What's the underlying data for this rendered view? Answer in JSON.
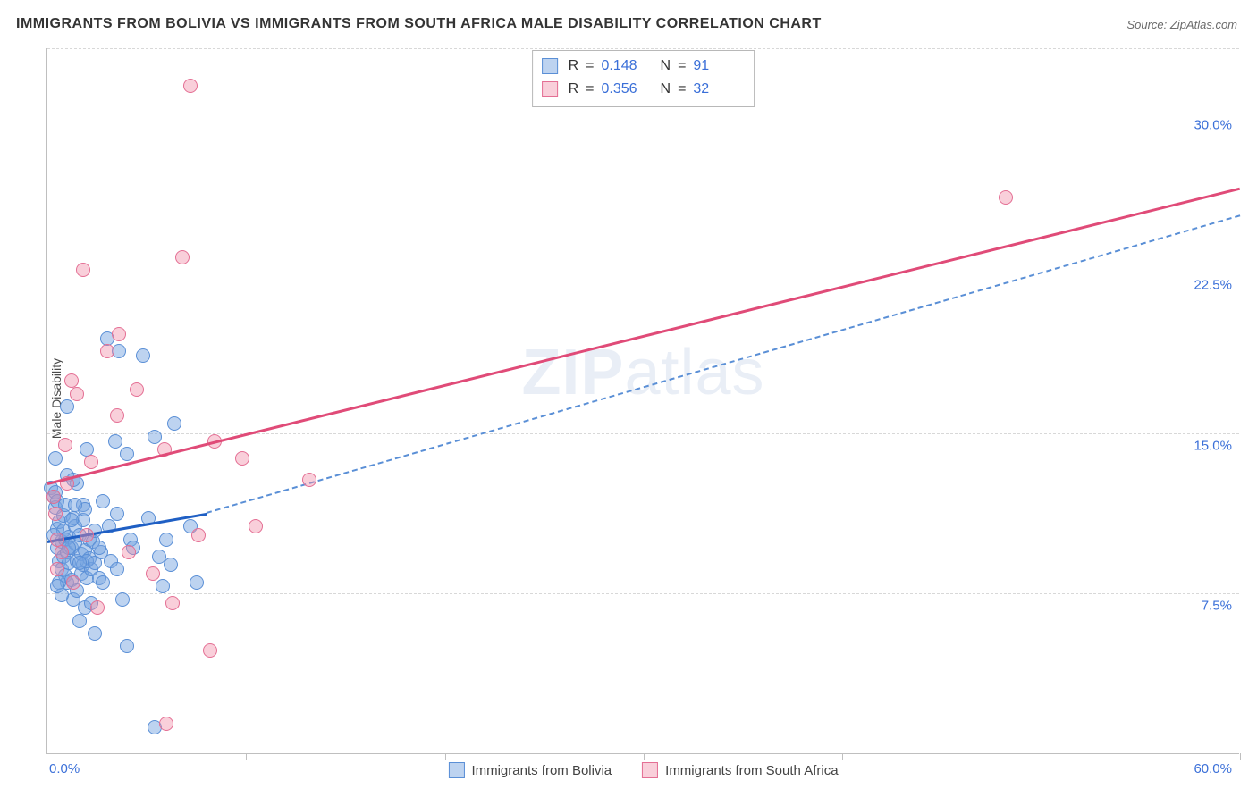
{
  "title": "IMMIGRANTS FROM BOLIVIA VS IMMIGRANTS FROM SOUTH AFRICA MALE DISABILITY CORRELATION CHART",
  "source": "Source: ZipAtlas.com",
  "ylabel": "Male Disability",
  "watermark_bold": "ZIP",
  "watermark_rest": "atlas",
  "chart": {
    "type": "scatter",
    "xlim": [
      0,
      60
    ],
    "ylim": [
      0,
      33
    ],
    "ytick_values": [
      7.5,
      15.0,
      22.5,
      30.0
    ],
    "ytick_labels": [
      "7.5%",
      "15.0%",
      "22.5%",
      "30.0%"
    ],
    "xtick_positions": [
      0,
      10,
      20,
      30,
      40,
      50,
      60
    ],
    "xaxis_label_left": "0.0%",
    "xaxis_label_right": "60.0%",
    "background_color": "#ffffff",
    "grid_color": "#d8d8d8",
    "point_radius": 8,
    "series": [
      {
        "name": "Immigrants from Bolivia",
        "fill": "rgba(118,164,224,0.48)",
        "stroke": "#5a8fd6",
        "line_color": "#1f5fc4",
        "line_dash_color": "#5a8fd6",
        "R": "0.148",
        "N": "91",
        "regression": {
          "x1": 0,
          "y1": 10.0,
          "x2_solid": 8,
          "y2_solid": 11.3,
          "x2": 60,
          "y2": 25.2
        },
        "points": [
          [
            0.2,
            12.4
          ],
          [
            0.3,
            12.0
          ],
          [
            0.4,
            11.5
          ],
          [
            0.4,
            12.2
          ],
          [
            0.5,
            11.8
          ],
          [
            0.5,
            10.5
          ],
          [
            0.5,
            9.6
          ],
          [
            0.6,
            10.8
          ],
          [
            0.6,
            9.0
          ],
          [
            0.7,
            8.6
          ],
          [
            0.7,
            9.9
          ],
          [
            0.8,
            9.2
          ],
          [
            0.8,
            10.4
          ],
          [
            0.8,
            11.1
          ],
          [
            0.9,
            8.3
          ],
          [
            0.9,
            10.0
          ],
          [
            1.0,
            16.2
          ],
          [
            1.0,
            9.4
          ],
          [
            1.0,
            8.0
          ],
          [
            1.1,
            10.1
          ],
          [
            1.1,
            8.9
          ],
          [
            1.2,
            9.6
          ],
          [
            1.2,
            8.1
          ],
          [
            1.3,
            11.0
          ],
          [
            1.3,
            7.2
          ],
          [
            1.4,
            9.8
          ],
          [
            1.4,
            10.6
          ],
          [
            1.5,
            9.0
          ],
          [
            1.5,
            12.6
          ],
          [
            1.5,
            7.6
          ],
          [
            1.6,
            6.2
          ],
          [
            1.6,
            10.2
          ],
          [
            1.7,
            8.4
          ],
          [
            1.7,
            9.3
          ],
          [
            1.8,
            11.6
          ],
          [
            1.8,
            8.8
          ],
          [
            1.9,
            6.8
          ],
          [
            1.9,
            9.5
          ],
          [
            2.0,
            14.2
          ],
          [
            2.0,
            8.2
          ],
          [
            2.1,
            10.0
          ],
          [
            2.1,
            9.1
          ],
          [
            2.2,
            7.0
          ],
          [
            2.2,
            8.6
          ],
          [
            2.3,
            9.9
          ],
          [
            2.4,
            5.6
          ],
          [
            2.4,
            10.4
          ],
          [
            2.6,
            8.2
          ],
          [
            2.7,
            9.4
          ],
          [
            2.8,
            11.8
          ],
          [
            2.8,
            8.0
          ],
          [
            3.0,
            19.4
          ],
          [
            3.1,
            10.6
          ],
          [
            3.2,
            9.0
          ],
          [
            3.4,
            14.6
          ],
          [
            3.5,
            8.6
          ],
          [
            3.5,
            11.2
          ],
          [
            3.6,
            18.8
          ],
          [
            3.8,
            7.2
          ],
          [
            4.0,
            14.0
          ],
          [
            4.0,
            5.0
          ],
          [
            4.2,
            10.0
          ],
          [
            4.3,
            9.6
          ],
          [
            4.8,
            18.6
          ],
          [
            5.1,
            11.0
          ],
          [
            5.4,
            14.8
          ],
          [
            5.4,
            1.2
          ],
          [
            5.6,
            9.2
          ],
          [
            5.8,
            7.8
          ],
          [
            6.0,
            10.0
          ],
          [
            6.2,
            8.8
          ],
          [
            6.4,
            15.4
          ],
          [
            7.2,
            10.6
          ],
          [
            7.5,
            8.0
          ],
          [
            1.0,
            13.0
          ],
          [
            0.4,
            13.8
          ],
          [
            1.3,
            12.8
          ],
          [
            0.7,
            7.4
          ],
          [
            1.8,
            10.9
          ],
          [
            2.0,
            9.0
          ],
          [
            2.4,
            8.9
          ],
          [
            2.6,
            9.6
          ],
          [
            1.9,
            11.4
          ],
          [
            1.2,
            10.9
          ],
          [
            0.9,
            11.6
          ],
          [
            1.4,
            11.6
          ],
          [
            1.6,
            8.9
          ],
          [
            1.1,
            9.6
          ],
          [
            0.6,
            8.0
          ],
          [
            0.5,
            7.8
          ],
          [
            0.3,
            10.2
          ]
        ]
      },
      {
        "name": "Immigrants from South Africa",
        "fill": "rgba(240,140,168,0.42)",
        "stroke": "#e46f94",
        "line_color": "#e04b78",
        "R": "0.356",
        "N": "32",
        "regression": {
          "x1": 0,
          "y1": 12.7,
          "x2_solid": 60,
          "y2_solid": 26.5,
          "x2": 60,
          "y2": 26.5
        },
        "points": [
          [
            0.3,
            12.0
          ],
          [
            0.4,
            11.2
          ],
          [
            0.5,
            10.0
          ],
          [
            0.5,
            8.6
          ],
          [
            0.7,
            9.4
          ],
          [
            0.9,
            14.4
          ],
          [
            1.0,
            12.6
          ],
          [
            1.2,
            17.4
          ],
          [
            1.3,
            8.0
          ],
          [
            1.5,
            16.8
          ],
          [
            1.8,
            22.6
          ],
          [
            2.0,
            10.2
          ],
          [
            2.2,
            13.6
          ],
          [
            2.5,
            6.8
          ],
          [
            3.0,
            18.8
          ],
          [
            3.5,
            15.8
          ],
          [
            3.6,
            19.6
          ],
          [
            4.1,
            9.4
          ],
          [
            4.5,
            17.0
          ],
          [
            5.3,
            8.4
          ],
          [
            5.9,
            14.2
          ],
          [
            6.3,
            7.0
          ],
          [
            6.8,
            23.2
          ],
          [
            7.2,
            31.2
          ],
          [
            7.6,
            10.2
          ],
          [
            8.2,
            4.8
          ],
          [
            8.4,
            14.6
          ],
          [
            9.8,
            13.8
          ],
          [
            10.5,
            10.6
          ],
          [
            13.2,
            12.8
          ],
          [
            48.2,
            26.0
          ],
          [
            6.0,
            1.4
          ]
        ]
      }
    ]
  },
  "stats_labels": {
    "R": "R",
    "eq": "=",
    "N": "N"
  },
  "legend": {
    "bolivia": "Immigrants from Bolivia",
    "south_africa": "Immigrants from South Africa"
  }
}
